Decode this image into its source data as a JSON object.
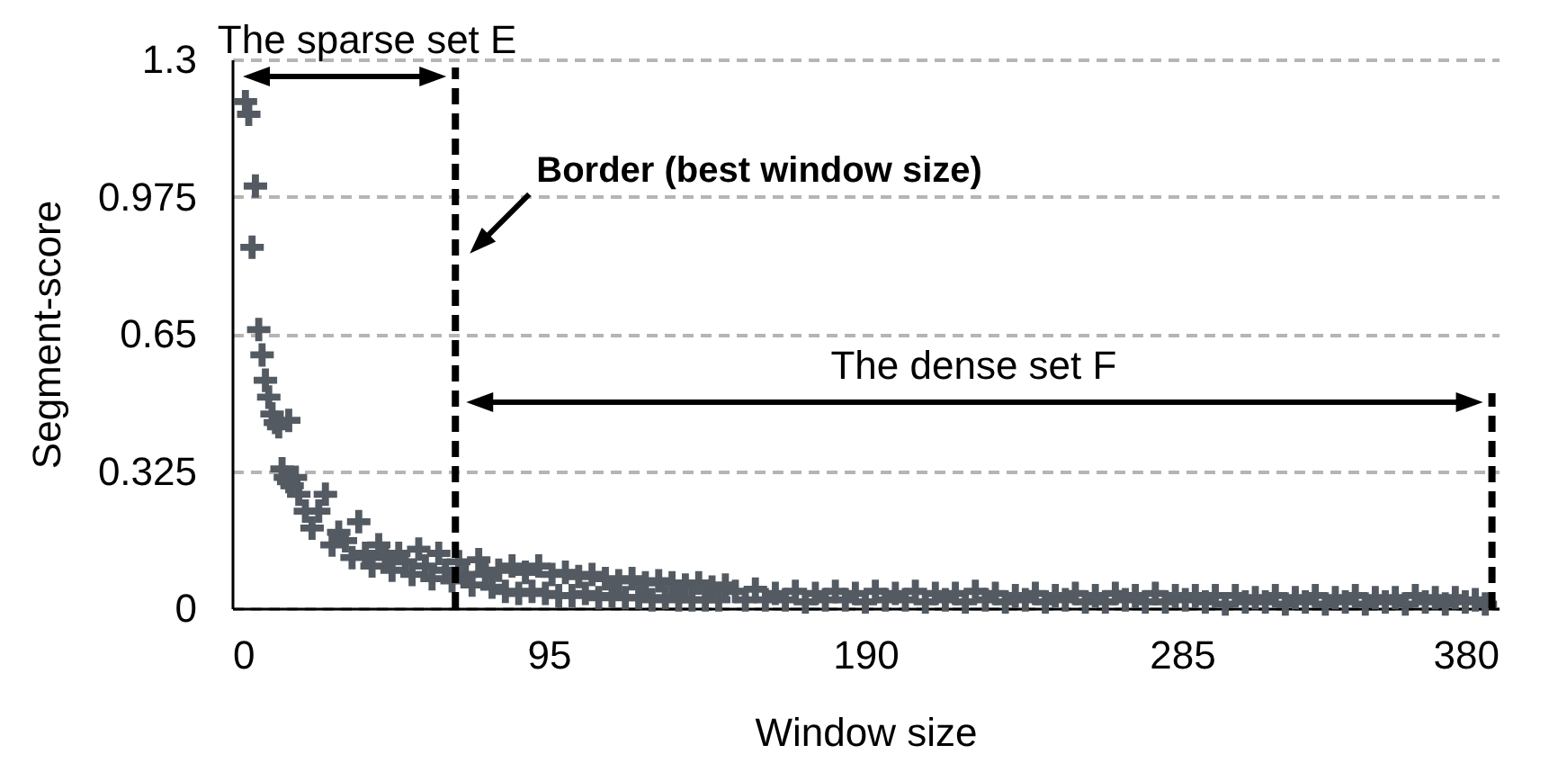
{
  "chart_data": {
    "type": "scatter",
    "xlabel": "Window size",
    "ylabel": "Segment-score",
    "xlim": [
      0,
      380
    ],
    "ylim": [
      0,
      1.3
    ],
    "xticks": [
      0,
      95,
      190,
      285,
      380
    ],
    "yticks": [
      0,
      0.325,
      0.65,
      0.975,
      1.3
    ],
    "grid": "y",
    "marker": "cross",
    "color": "#545a62",
    "x": [
      4,
      5,
      6,
      7,
      8,
      9,
      10,
      11,
      12,
      13,
      14,
      15,
      16,
      17,
      17,
      18,
      19,
      20,
      22,
      24,
      26,
      28,
      30,
      32,
      34,
      36,
      38,
      40,
      42,
      44,
      46,
      48,
      50,
      52,
      54,
      56,
      58,
      60,
      62,
      64,
      66,
      68,
      70,
      72,
      74,
      76,
      78,
      80,
      82,
      84,
      86,
      88,
      90,
      92,
      94,
      96,
      98,
      100,
      102,
      104,
      106,
      108,
      110,
      112,
      114,
      116,
      118,
      120,
      122,
      124,
      126,
      128,
      130,
      132,
      134,
      136,
      138,
      140,
      142,
      144,
      146,
      148,
      151,
      154,
      157,
      160,
      163,
      166,
      169,
      172,
      175,
      178,
      181,
      184,
      187,
      190,
      193,
      196,
      199,
      202,
      205,
      208,
      211,
      214,
      217,
      220,
      223,
      226,
      229,
      232,
      235,
      238,
      241,
      244,
      247,
      250,
      253,
      256,
      259,
      262,
      265,
      268,
      271,
      274,
      277,
      280,
      283,
      286,
      289,
      292,
      295,
      298,
      301,
      304,
      307,
      310,
      313,
      316,
      319,
      322,
      325,
      328,
      331,
      334,
      337,
      340,
      343,
      346,
      349,
      352,
      355,
      358,
      361,
      364,
      367,
      370,
      373,
      376
    ],
    "values": [
      1.2,
      1.17,
      0.855,
      1.0,
      0.66,
      0.6,
      0.54,
      0.5,
      0.46,
      0.44,
      0.43,
      0.33,
      0.31,
      0.445,
      0.3,
      0.29,
      0.31,
      0.27,
      0.23,
      0.19,
      0.23,
      0.27,
      0.15,
      0.18,
      0.16,
      0.12,
      0.205,
      0.13,
      0.1,
      0.15,
      0.12,
      0.09,
      0.13,
      0.11,
      0.08,
      0.14,
      0.1,
      0.07,
      0.13,
      0.09,
      0.065,
      0.11,
      0.08,
      0.055,
      0.115,
      0.08,
      0.05,
      0.09,
      0.04,
      0.1,
      0.035,
      0.085,
      0.04,
      0.1,
      0.035,
      0.08,
      0.03,
      0.085,
      0.03,
      0.075,
      0.035,
      0.08,
      0.025,
      0.07,
      0.03,
      0.065,
      0.025,
      0.07,
      0.025,
      0.06,
      0.02,
      0.065,
      0.025,
      0.06,
      0.02,
      0.055,
      0.02,
      0.06,
      0.02,
      0.05,
      0.02,
      0.055,
      0.04,
      0.02,
      0.045,
      0.02,
      0.035,
      0.02,
      0.04,
      0.015,
      0.035,
      0.02,
      0.04,
      0.02,
      0.035,
      0.015,
      0.04,
      0.02,
      0.035,
      0.02,
      0.04,
      0.015,
      0.035,
      0.02,
      0.035,
      0.015,
      0.04,
      0.02,
      0.035,
      0.015,
      0.03,
      0.02,
      0.035,
      0.015,
      0.03,
      0.02,
      0.035,
      0.015,
      0.03,
      0.015,
      0.035,
      0.02,
      0.03,
      0.015,
      0.035,
      0.015,
      0.03,
      0.02,
      0.03,
      0.015,
      0.03,
      0.01,
      0.03,
      0.015,
      0.025,
      0.015,
      0.03,
      0.01,
      0.025,
      0.015,
      0.03,
      0.01,
      0.025,
      0.015,
      0.03,
      0.01,
      0.025,
      0.015,
      0.025,
      0.01,
      0.03,
      0.015,
      0.025,
      0.01,
      0.025,
      0.015,
      0.02,
      0.01
    ],
    "ref_lines": [
      {
        "axis": "x",
        "value": 67,
        "color": "#000000",
        "line_style": "dashed"
      },
      {
        "axis": "x",
        "value": 378,
        "color": "#000000",
        "line_style": "dashed"
      }
    ],
    "annotations": [
      "The sparse set E",
      {
        "text": "Border (best window size)",
        "x": 67,
        "y": 0.84
      },
      "The dense set F"
    ]
  }
}
